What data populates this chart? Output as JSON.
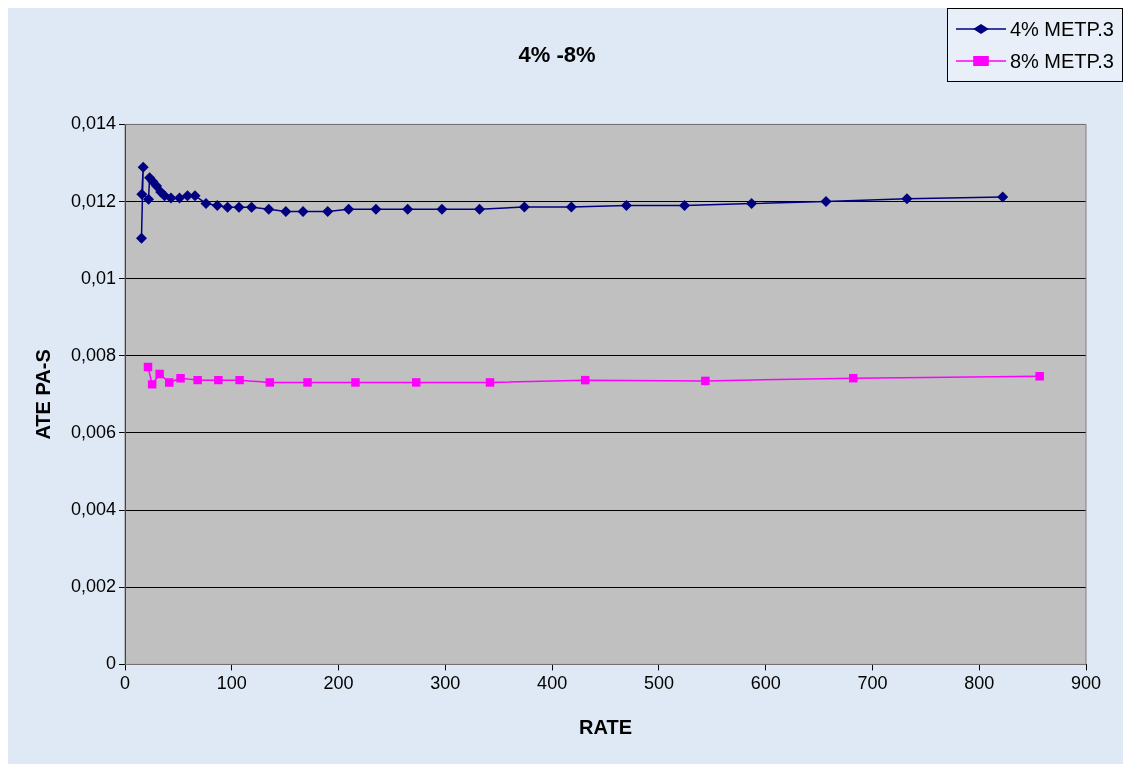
{
  "chart_data": {
    "type": "line",
    "title": "4% -8%",
    "xlabel": "RATE",
    "ylabel": "ATE PA-S",
    "xlim": [
      0,
      900
    ],
    "xticks": [
      0,
      100,
      200,
      300,
      400,
      500,
      600,
      700,
      800,
      900
    ],
    "ylim": [
      0,
      0.014
    ],
    "yticks": [
      0,
      {
        "value": 0.002,
        "label": "0,002"
      },
      {
        "value": 0.004,
        "label": "0,004"
      },
      {
        "value": 0.006,
        "label": "0,006"
      },
      {
        "value": 0.008,
        "label": "0,008"
      },
      {
        "value": 0.01,
        "label": "0,01"
      },
      {
        "value": 0.012,
        "label": "0,012"
      },
      {
        "value": 0.014,
        "label": "0,014"
      }
    ],
    "grid": "y",
    "legend": "top right",
    "line_style": "solid",
    "series": [
      {
        "name": "4% METP.3",
        "color": "#000080",
        "marker": "diamond",
        "x": [
          15.4,
          17,
          15.7,
          22,
          23,
          26,
          29.5,
          33.4,
          37,
          43,
          51,
          58.5,
          65.5,
          75.8,
          86.4,
          96,
          106.7,
          118.5,
          134.6,
          150.6,
          166.7,
          189.8,
          209.4,
          235,
          264.7,
          296.8,
          332,
          374,
          418,
          469.6,
          524,
          586.8,
          656.5,
          732.3,
          822
        ],
        "values": [
          0.01105,
          0.01289,
          0.01219,
          0.01206,
          0.01262,
          0.01252,
          0.0124,
          0.01225,
          0.01215,
          0.01209,
          0.01209,
          0.01215,
          0.01215,
          0.01195,
          0.0119,
          0.01185,
          0.01185,
          0.01185,
          0.0118,
          0.01174,
          0.01174,
          0.01174,
          0.0118,
          0.0118,
          0.0118,
          0.0118,
          0.0118,
          0.01186,
          0.01186,
          0.0119,
          0.0119,
          0.01195,
          0.012,
          0.01207,
          0.01212
        ]
      },
      {
        "name": "8% METP.3",
        "color": "#ff00ff",
        "marker": "square",
        "x": [
          21.5,
          25.4,
          32.4,
          41.4,
          52,
          68,
          87.4,
          107.3,
          135.6,
          170.9,
          215.8,
          272.7,
          341.8,
          431,
          543.5,
          682,
          856.6
        ],
        "values": [
          0.00771,
          0.00726,
          0.00753,
          0.00731,
          0.00742,
          0.00737,
          0.00737,
          0.00737,
          0.00731,
          0.00731,
          0.00731,
          0.00731,
          0.00731,
          0.00737,
          0.00735,
          0.00742,
          0.00747
        ]
      }
    ]
  }
}
